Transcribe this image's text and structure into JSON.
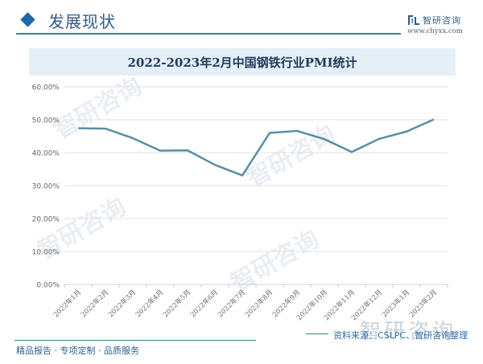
{
  "header": {
    "section_title": "发展现状",
    "logo_name": "智研咨询",
    "logo_url": "www.chyxx.com"
  },
  "chart_title": "2022-2023年2月中国钢铁行业PMI统计",
  "footer": {
    "tagline": "精品报告 · 专项定制 · 品质服务",
    "source": "资料来源：CSLPC、智研咨询整理",
    "watermark": "智研咨询"
  },
  "colors": {
    "line": "#5a8ea3",
    "accent": "#1e6aa8",
    "title_bar": "#e4eff7",
    "grid": "#e2e2e2"
  },
  "chart_data": {
    "type": "line",
    "title": "2022-2023年2月中国钢铁行业PMI统计",
    "xlabel": "",
    "ylabel": "",
    "ylim": [
      0,
      60
    ],
    "yticks": [
      "0.00%",
      "10.00%",
      "20.00%",
      "30.00%",
      "40.00%",
      "50.00%",
      "60.00%"
    ],
    "grid": true,
    "legend": "none",
    "categories": [
      "2022年1月",
      "2022年2月",
      "2022年3月",
      "2022年4月",
      "2022年5月",
      "2022年6月",
      "2022年7月",
      "2022年8月",
      "2022年9月",
      "2022年10月",
      "2022年11月",
      "2022年12月",
      "2023年1月",
      "2023年2月"
    ],
    "series": [
      {
        "name": "钢铁行业PMI",
        "values": [
          47.4,
          47.3,
          44.4,
          40.6,
          40.7,
          36.3,
          33.1,
          46.0,
          46.6,
          44.1,
          40.2,
          44.2,
          46.4,
          50.1
        ]
      }
    ]
  }
}
